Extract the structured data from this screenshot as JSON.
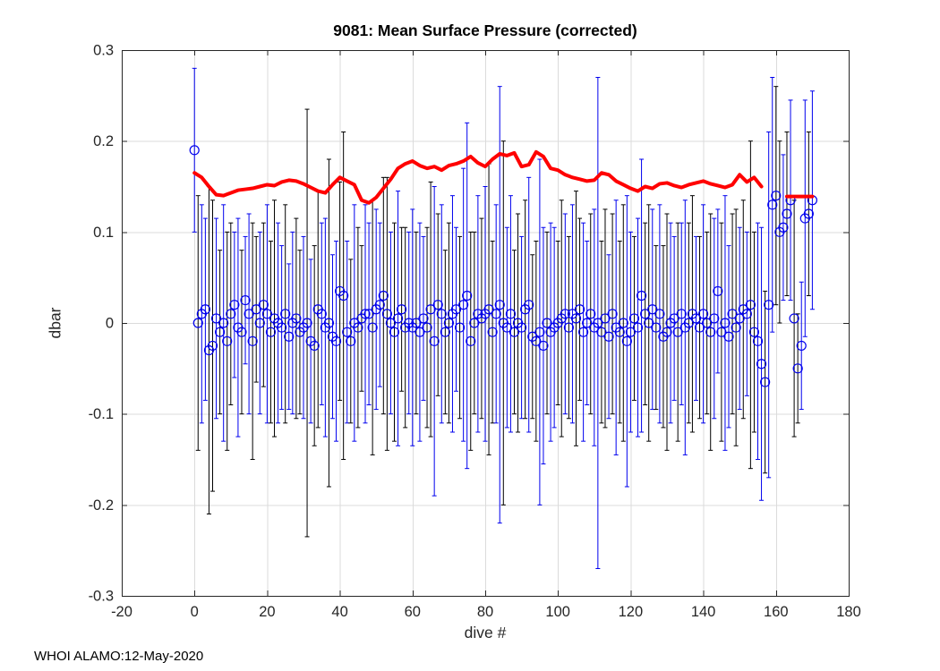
{
  "chart_data": {
    "type": "scatter",
    "title": "9081: Mean Surface Pressure (corrected)",
    "xlabel": "dive #",
    "ylabel": "dbar",
    "annotation": "WHOI ALAMO:12-May-2020",
    "xlim": [
      -20,
      180
    ],
    "ylim": [
      -0.3,
      0.3
    ],
    "xticks": [
      -20,
      0,
      20,
      40,
      60,
      80,
      100,
      120,
      140,
      160,
      180
    ],
    "xtick_labels": [
      "-20",
      "0",
      "20",
      "40",
      "60",
      "80",
      "100",
      "120",
      "140",
      "160",
      "180"
    ],
    "yticks": [
      -0.3,
      -0.2,
      -0.1,
      0,
      0.1,
      0.2,
      0.3
    ],
    "ytick_labels": [
      "-0.3",
      "-0.2",
      "-0.1",
      "0",
      "0.1",
      "0.2",
      "0.3"
    ],
    "grid": true,
    "legend": "none",
    "colors": {
      "blue": "#0000EE",
      "black": "#000000",
      "red": "#FF0000",
      "grid": "#DBDBDB",
      "axis": "#262626"
    },
    "series": [
      {
        "name": "mean surface pressure per dive (blue circles, mixed blue/black std error bars)",
        "marker": "o",
        "x": [
          0,
          1,
          2,
          3,
          4,
          5,
          6,
          7,
          8,
          9,
          10,
          11,
          12,
          13,
          14,
          15,
          16,
          17,
          18,
          19,
          20,
          21,
          22,
          23,
          24,
          25,
          26,
          27,
          28,
          29,
          30,
          31,
          32,
          33,
          34,
          35,
          36,
          37,
          38,
          39,
          40,
          41,
          42,
          43,
          44,
          45,
          46,
          47,
          48,
          49,
          50,
          51,
          52,
          53,
          54,
          55,
          56,
          57,
          58,
          59,
          60,
          61,
          62,
          63,
          64,
          65,
          66,
          67,
          68,
          69,
          70,
          71,
          72,
          73,
          74,
          75,
          76,
          77,
          78,
          79,
          80,
          81,
          82,
          83,
          84,
          85,
          86,
          87,
          88,
          89,
          90,
          91,
          92,
          93,
          94,
          95,
          96,
          97,
          98,
          99,
          100,
          101,
          102,
          103,
          104,
          105,
          106,
          107,
          108,
          109,
          110,
          111,
          112,
          113,
          114,
          115,
          116,
          117,
          118,
          119,
          120,
          121,
          122,
          123,
          124,
          125,
          126,
          127,
          128,
          129,
          130,
          131,
          132,
          133,
          134,
          135,
          136,
          137,
          138,
          139,
          140,
          141,
          142,
          143,
          144,
          145,
          146,
          147,
          148,
          149,
          150,
          151,
          152,
          153,
          154,
          155,
          156,
          157,
          158,
          159,
          160,
          161,
          162,
          163,
          164,
          165,
          166,
          167,
          168,
          169,
          170
        ],
        "y": [
          0.19,
          0,
          0.01,
          0.015,
          -0.03,
          -0.025,
          0.005,
          -0.01,
          0,
          -0.02,
          0.01,
          0.02,
          -0.005,
          -0.01,
          0.025,
          0.01,
          -0.02,
          0.015,
          0,
          0.02,
          0.01,
          -0.01,
          0.005,
          0,
          -0.005,
          0.01,
          -0.015,
          0,
          0.005,
          -0.01,
          -0.005,
          0,
          -0.02,
          -0.025,
          0.015,
          0.01,
          -0.005,
          0,
          -0.015,
          -0.02,
          0.035,
          0.03,
          -0.01,
          -0.02,
          0,
          -0.005,
          0.005,
          0.01,
          0.01,
          -0.005,
          0.015,
          0.02,
          0.03,
          0.01,
          0,
          -0.01,
          0.005,
          0.015,
          -0.005,
          0,
          -0.005,
          0,
          -0.01,
          0.005,
          -0.005,
          0.015,
          -0.02,
          0.02,
          0.01,
          -0.01,
          0,
          0.01,
          0.015,
          -0.005,
          0.02,
          0.03,
          -0.02,
          0,
          0.01,
          0.005,
          0.01,
          0.015,
          -0.01,
          0.01,
          0.02,
          0,
          -0.005,
          0.01,
          -0.01,
          0,
          -0.005,
          0.015,
          0.02,
          -0.015,
          -0.02,
          -0.01,
          -0.025,
          0,
          -0.01,
          -0.005,
          0,
          0.005,
          0.01,
          -0.005,
          0.01,
          0.005,
          0.015,
          -0.01,
          0,
          0.01,
          -0.005,
          0,
          -0.01,
          0.005,
          -0.015,
          0.01,
          -0.005,
          -0.01,
          0,
          -0.02,
          -0.01,
          0.005,
          -0.005,
          0.03,
          0.01,
          0,
          0.015,
          -0.005,
          0.01,
          -0.015,
          -0.01,
          0,
          0.005,
          -0.01,
          0.01,
          -0.005,
          0,
          0.01,
          0.005,
          -0.005,
          0.01,
          0,
          -0.01,
          0.005,
          0.035,
          -0.01,
          0,
          -0.015,
          0.01,
          -0.005,
          0.005,
          0.015,
          0.01,
          0.02,
          -0.01,
          -0.02,
          -0.045,
          -0.065,
          0.02,
          0.13,
          0.14,
          0.1,
          0.105,
          0.12,
          0.135,
          0.005,
          -0.05,
          -0.025,
          0.115,
          0.12,
          0.135
        ],
        "yerr": [
          0.09,
          0.14,
          0.12,
          0.1,
          0.18,
          0.16,
          0.11,
          0.09,
          0.13,
          0.12,
          0.1,
          0.08,
          0.12,
          0.09,
          0.07,
          0.11,
          0.13,
          0.08,
          0.1,
          0.09,
          0.12,
          0.1,
          0.13,
          0.11,
          0.09,
          0.12,
          0.08,
          0.1,
          0.11,
          0.09,
          0.1,
          0.235,
          0.09,
          0.11,
          0.13,
          0.1,
          0.12,
          0.18,
          0.09,
          0.11,
          0.12,
          0.18,
          0.1,
          0.09,
          0.13,
          0.11,
          0.08,
          0.12,
          0.1,
          0.14,
          0.11,
          0.09,
          0.13,
          0.15,
          0.1,
          0.12,
          0.14,
          0.09,
          0.11,
          0.1,
          0.13,
          0.1,
          0.12,
          0.09,
          0.11,
          0.14,
          0.17,
          0.1,
          0.12,
          0.09,
          0.11,
          0.13,
          0.09,
          0.1,
          0.15,
          0.19,
          0.12,
          0.1,
          0.13,
          0.11,
          0.14,
          0.16,
          0.1,
          0.12,
          0.24,
          0.2,
          0.11,
          0.13,
          0.09,
          0.12,
          0.1,
          0.12,
          0.14,
          0.09,
          0.11,
          0.19,
          0.13,
          0.1,
          0.12,
          0.11,
          0.09,
          0.13,
          0.11,
          0.1,
          0.12,
          0.14,
          0.1,
          0.12,
          0.09,
          0.11,
          0.13,
          0.27,
          0.1,
          0.12,
          0.09,
          0.11,
          0.14,
          0.1,
          0.13,
          0.16,
          0.11,
          0.09,
          0.12,
          0.15,
          0.1,
          0.13,
          0.11,
          0.09,
          0.12,
          0.1,
          0.13,
          0.11,
          0.09,
          0.12,
          0.1,
          0.14,
          0.11,
          0.13,
          0.09,
          0.1,
          0.12,
          0.1,
          0.13,
          0.11,
          0.09,
          0.12,
          0.14,
          0.1,
          0.11,
          0.13,
          0.1,
          0.12,
          0.09,
          0.18,
          0.11,
          0.13,
          0.15,
          0.1,
          0.19,
          0.14,
          0.12,
          0.1,
          0.08,
          0.09,
          0.11,
          0.13,
          0.06,
          0.07,
          0.13,
          0.09,
          0.12
        ],
        "bar_colors": "bkbbkkbkbkkbbkbbkkbkbkkbbkbbkkbkbkkbbkbbkkbkbkkbbkbbkkbkbkkbbkbbkkbkbkkbbkbbkkbkbkkbbkbbkkbkbkkbbkbbkkbkbkkbbkbbkkbkbkkbbkbbkkbkbkkbbkbbkkbkbkkbbkbbkkbkbkkbbkbbkkbkbkkbbkb"
      },
      {
        "name": "smoothed surface-pressure correction (red line)",
        "type": "line",
        "segments": [
          {
            "x": [
              0,
              2,
              4,
              6,
              8,
              10,
              12,
              14,
              16,
              18,
              20,
              22,
              24,
              26,
              28,
              30,
              32,
              34,
              36,
              38,
              40,
              42,
              44,
              46,
              48,
              50,
              52,
              54,
              56,
              58,
              60,
              62,
              64,
              66,
              68,
              70,
              72,
              74,
              76,
              78,
              80,
              82,
              84,
              86,
              88,
              90,
              92,
              94,
              96,
              98,
              100,
              102,
              104,
              106,
              108,
              110,
              112,
              114,
              116,
              118,
              120,
              122,
              124,
              126,
              128,
              130,
              132,
              134,
              136,
              138,
              140,
              142,
              144,
              146,
              148,
              150,
              152,
              154,
              156
            ],
            "y": [
              0.165,
              0.16,
              0.15,
              0.141,
              0.14,
              0.143,
              0.146,
              0.147,
              0.148,
              0.15,
              0.152,
              0.151,
              0.155,
              0.157,
              0.156,
              0.153,
              0.149,
              0.145,
              0.143,
              0.152,
              0.16,
              0.156,
              0.152,
              0.135,
              0.132,
              0.138,
              0.148,
              0.158,
              0.17,
              0.175,
              0.178,
              0.173,
              0.17,
              0.172,
              0.168,
              0.173,
              0.175,
              0.178,
              0.183,
              0.176,
              0.172,
              0.18,
              0.186,
              0.184,
              0.187,
              0.172,
              0.174,
              0.188,
              0.183,
              0.17,
              0.168,
              0.163,
              0.16,
              0.158,
              0.156,
              0.157,
              0.165,
              0.163,
              0.156,
              0.152,
              0.148,
              0.145,
              0.15,
              0.148,
              0.153,
              0.154,
              0.151,
              0.149,
              0.152,
              0.154,
              0.156,
              0.153,
              0.151,
              0.149,
              0.152,
              0.163,
              0.155,
              0.16,
              0.15
            ]
          },
          {
            "x": [
              163,
              170
            ],
            "y": [
              0.139,
              0.139
            ]
          }
        ]
      }
    ]
  }
}
